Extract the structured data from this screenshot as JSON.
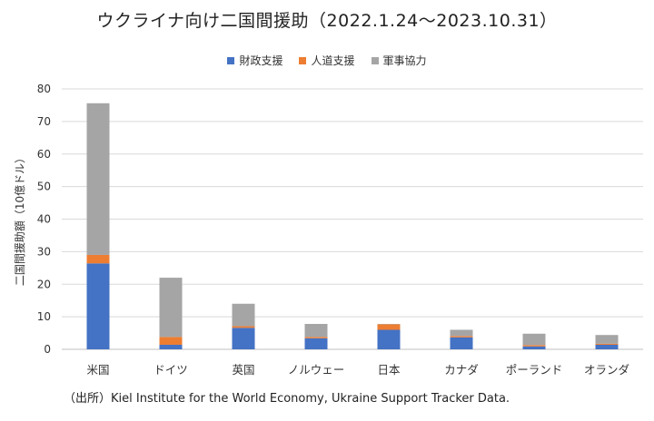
{
  "title": "ウクライナ向け二国間援助（2022.1.24～2023.10.31）",
  "source": "（出所）Kiel Institute for the World Economy, Ukraine Support Tracker Data.",
  "chart_data": {
    "type": "bar",
    "stacked": true,
    "title": "ウクライナ向け二国間援助（2022.1.24～2023.10.31）",
    "xlabel": "",
    "ylabel": "二国間援助額（10億ドル）",
    "ylim": [
      0,
      80
    ],
    "yticks": [
      0,
      10,
      20,
      30,
      40,
      50,
      60,
      70,
      80
    ],
    "grid": true,
    "legend_position": "top",
    "categories": [
      "米国",
      "ドイツ",
      "英国",
      "ノルウェー",
      "日本",
      "カナダ",
      "ポーランド",
      "オランダ"
    ],
    "series": [
      {
        "name": "財政支援",
        "color": "#4472C4",
        "values": [
          26.4,
          1.4,
          6.6,
          3.4,
          6.0,
          3.7,
          0.9,
          1.4
        ]
      },
      {
        "name": "人道支援",
        "color": "#ED7D31",
        "values": [
          2.6,
          2.4,
          0.5,
          0.4,
          1.7,
          0.4,
          0.4,
          0.3
        ]
      },
      {
        "name": "軍事協力",
        "color": "#A5A5A5",
        "values": [
          46.6,
          18.2,
          6.9,
          4.0,
          0.1,
          1.9,
          3.5,
          2.7
        ]
      }
    ]
  }
}
